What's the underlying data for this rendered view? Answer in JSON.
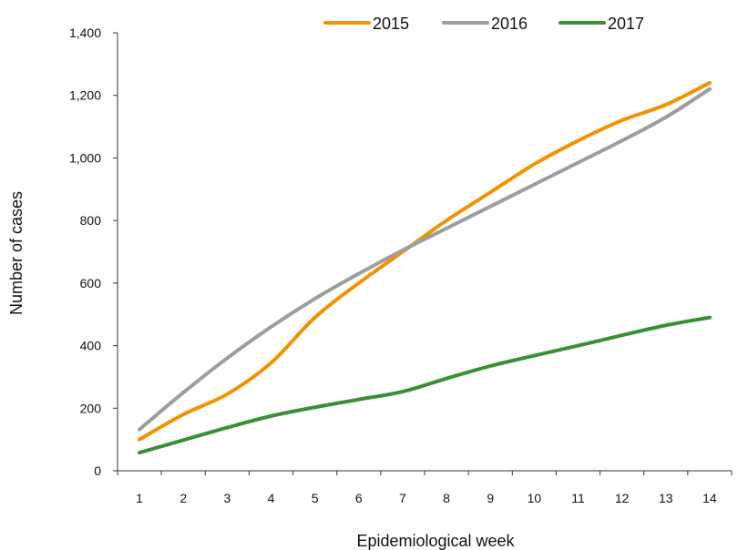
{
  "chart_data": {
    "type": "line",
    "title": "",
    "xlabel": "Epidemiological week",
    "ylabel": "Number of cases",
    "x": [
      1,
      2,
      3,
      4,
      5,
      6,
      7,
      8,
      9,
      10,
      11,
      12,
      13,
      14
    ],
    "x_tick_labels": [
      "1",
      "2",
      "3",
      "4",
      "5",
      "6",
      "7",
      "8",
      "9",
      "10",
      "11",
      "12",
      "13",
      "14"
    ],
    "ylim": [
      0,
      1400
    ],
    "y_ticks": [
      0,
      200,
      400,
      600,
      800,
      1000,
      1200,
      1400
    ],
    "y_tick_labels": [
      "0",
      "200",
      "400",
      "600",
      "800",
      "1,000",
      "1,200",
      "1,400"
    ],
    "grid": false,
    "legend_position": "top",
    "series": [
      {
        "name": "2015",
        "color": "#F39200",
        "values": [
          100,
          180,
          245,
          345,
          490,
          600,
          700,
          800,
          890,
          980,
          1055,
          1120,
          1170,
          1240
        ]
      },
      {
        "name": "2016",
        "color": "#9D9D9C",
        "values": [
          132,
          250,
          360,
          460,
          550,
          630,
          705,
          775,
          845,
          915,
          985,
          1055,
          1130,
          1220
        ]
      },
      {
        "name": "2017",
        "color": "#3A8F35",
        "values": [
          58,
          98,
          138,
          175,
          203,
          228,
          253,
          295,
          335,
          368,
          400,
          433,
          465,
          490
        ]
      }
    ]
  }
}
